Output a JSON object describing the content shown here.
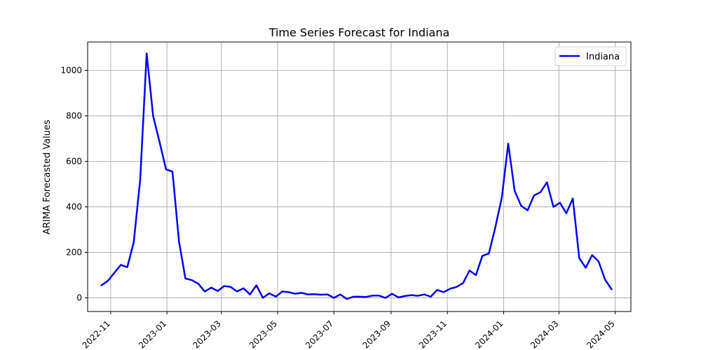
{
  "chart_data": {
    "type": "line",
    "title": "Time Series Forecast for Indiana",
    "xlabel": "",
    "ylabel": "ARIMA Forecasted Values",
    "xlim": [
      "2022-10-07",
      "2024-05-18"
    ],
    "ylim": [
      -60,
      1125
    ],
    "grid": true,
    "legend": {
      "placement": "top-right",
      "entries": [
        "Indiana"
      ]
    },
    "x_ticks": [
      "2022-11",
      "2023-01",
      "2023-03",
      "2023-05",
      "2023-07",
      "2023-09",
      "2023-11",
      "2024-01",
      "2024-03",
      "2024-05"
    ],
    "y_ticks": [
      0,
      200,
      400,
      600,
      800,
      1000
    ],
    "series": [
      {
        "name": "Indiana",
        "color": "#0000ff",
        "x": [
          "2022-10-22",
          "2022-10-29",
          "2022-11-05",
          "2022-11-12",
          "2022-11-19",
          "2022-11-26",
          "2022-12-03",
          "2022-12-10",
          "2022-12-17",
          "2022-12-24",
          "2022-12-31",
          "2023-01-07",
          "2023-01-14",
          "2023-01-21",
          "2023-01-28",
          "2023-02-04",
          "2023-02-11",
          "2023-02-18",
          "2023-02-25",
          "2023-03-04",
          "2023-03-11",
          "2023-03-18",
          "2023-03-25",
          "2023-04-01",
          "2023-04-08",
          "2023-04-15",
          "2023-04-22",
          "2023-04-29",
          "2023-05-06",
          "2023-05-13",
          "2023-05-20",
          "2023-05-27",
          "2023-06-03",
          "2023-06-10",
          "2023-06-17",
          "2023-06-24",
          "2023-07-01",
          "2023-07-08",
          "2023-07-15",
          "2023-07-22",
          "2023-07-29",
          "2023-08-05",
          "2023-08-12",
          "2023-08-19",
          "2023-08-26",
          "2023-09-02",
          "2023-09-09",
          "2023-09-16",
          "2023-09-23",
          "2023-09-30",
          "2023-10-07",
          "2023-10-14",
          "2023-10-21",
          "2023-10-28",
          "2023-11-04",
          "2023-11-11",
          "2023-11-18",
          "2023-11-25",
          "2023-12-02",
          "2023-12-09",
          "2023-12-16",
          "2023-12-23",
          "2023-12-30",
          "2024-01-06",
          "2024-01-13",
          "2024-01-20",
          "2024-01-27",
          "2024-02-03",
          "2024-02-10",
          "2024-02-17",
          "2024-02-24",
          "2024-03-02",
          "2024-03-09",
          "2024-03-16",
          "2024-03-23",
          "2024-03-30",
          "2024-04-06",
          "2024-04-13",
          "2024-04-20",
          "2024-04-27"
        ],
        "values": [
          55,
          75,
          110,
          145,
          135,
          245,
          520,
          1075,
          800,
          685,
          565,
          555,
          250,
          85,
          78,
          62,
          28,
          45,
          30,
          52,
          48,
          28,
          42,
          15,
          55,
          0,
          20,
          5,
          28,
          25,
          18,
          22,
          15,
          16,
          14,
          15,
          0,
          15,
          -5,
          5,
          5,
          4,
          10,
          10,
          0,
          18,
          2,
          8,
          12,
          9,
          15,
          5,
          35,
          25,
          40,
          48,
          65,
          120,
          100,
          185,
          195,
          310,
          440,
          678,
          470,
          405,
          385,
          450,
          465,
          508,
          400,
          418,
          372,
          437,
          175,
          132,
          188,
          160,
          80,
          38
        ]
      }
    ]
  }
}
